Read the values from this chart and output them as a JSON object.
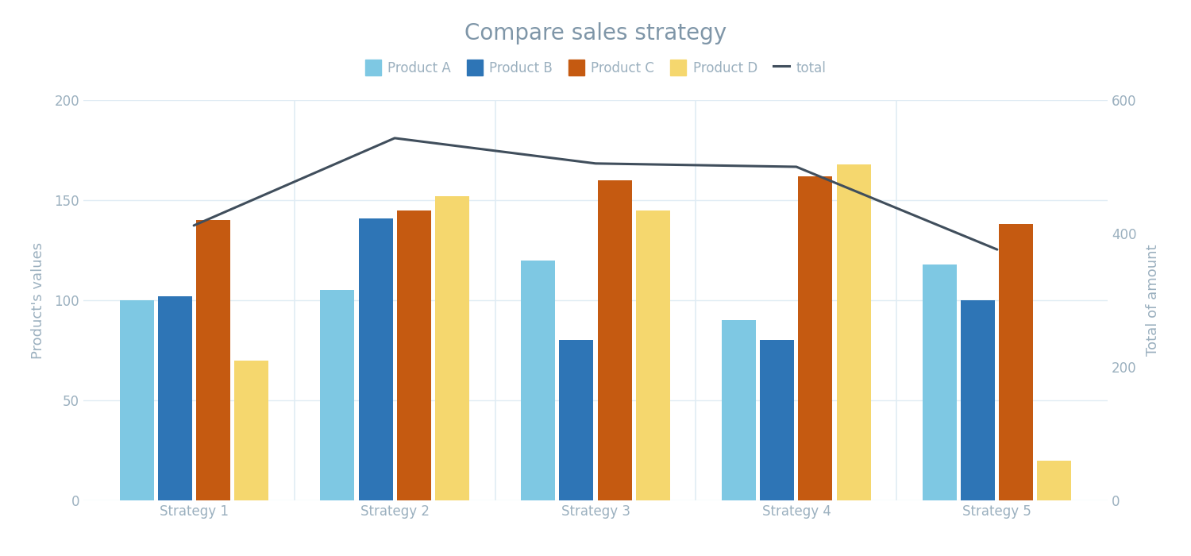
{
  "title": "Compare sales strategy",
  "categories": [
    "Strategy 1",
    "Strategy 2",
    "Strategy 3",
    "Strategy 4",
    "Strategy 5"
  ],
  "products": [
    "Product A",
    "Product B",
    "Product C",
    "Product D"
  ],
  "values": {
    "Product A": [
      100,
      105,
      120,
      90,
      118
    ],
    "Product B": [
      102,
      141,
      80,
      80,
      100
    ],
    "Product C": [
      140,
      145,
      160,
      162,
      138
    ],
    "Product D": [
      70,
      152,
      145,
      168,
      20
    ]
  },
  "total": [
    412,
    543,
    505,
    500,
    376
  ],
  "bar_colors": {
    "Product A": "#7EC8E3",
    "Product B": "#2E75B6",
    "Product C": "#C55A11",
    "Product D": "#F5D76E"
  },
  "total_color": "#404E5C",
  "ylabel_left": "Product's values",
  "ylabel_right": "Total of amount",
  "ylim_left": [
    0,
    200
  ],
  "ylim_right": [
    0,
    600
  ],
  "yticks_left": [
    0,
    50,
    100,
    150,
    200
  ],
  "yticks_right": [
    0,
    200,
    400,
    600
  ],
  "background_color": "#FFFFFF",
  "title_color": "#7F96A8",
  "axis_color": "#9BB0BF",
  "grid_color": "#E0ECF4",
  "title_fontsize": 20,
  "label_fontsize": 13,
  "tick_fontsize": 12,
  "legend_fontsize": 12,
  "bar_width": 0.17,
  "bar_gap": 0.02
}
